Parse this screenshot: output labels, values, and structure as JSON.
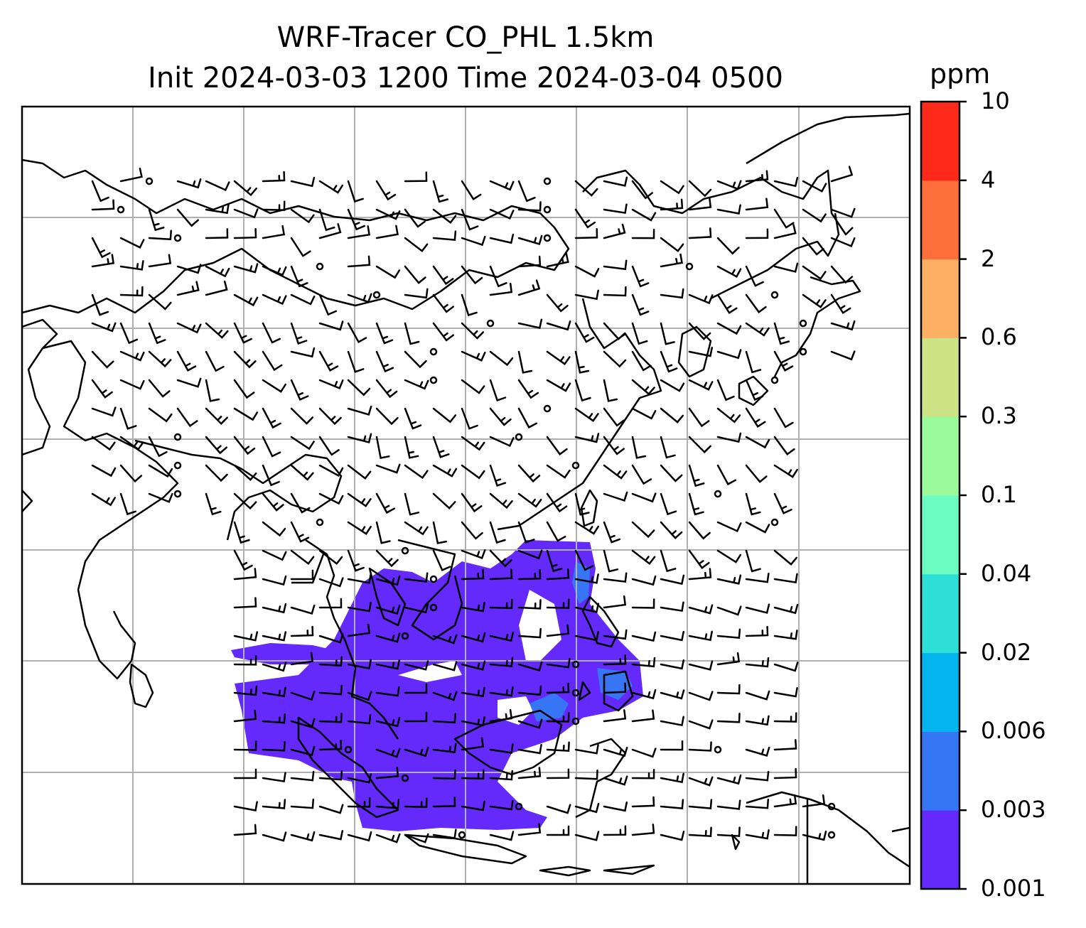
{
  "title": {
    "line1": "WRF-Tracer CO_PHL 1.5km",
    "line2": "Init 2024-03-03 1200 Time 2024-03-04 0500"
  },
  "colorbar": {
    "unit": "ppm",
    "levels": [
      "0.001",
      "0.003",
      "0.006",
      "0.02",
      "0.04",
      "0.1",
      "0.3",
      "0.6",
      "2",
      "4",
      "10"
    ],
    "colors": [
      "#6429fb",
      "#3675f4",
      "#03b4ee",
      "#2ddfd6",
      "#6afcc1",
      "#9bfb9b",
      "#cde486",
      "#fdb063",
      "#fe6e3a",
      "#fe2918"
    ]
  },
  "map": {
    "field": "CO_PHL tracer concentration",
    "wind_barbs": true,
    "gridlines": true,
    "coastlines": true,
    "plume_color": "#6429fb",
    "plume_core_color": "#3675f4"
  }
}
